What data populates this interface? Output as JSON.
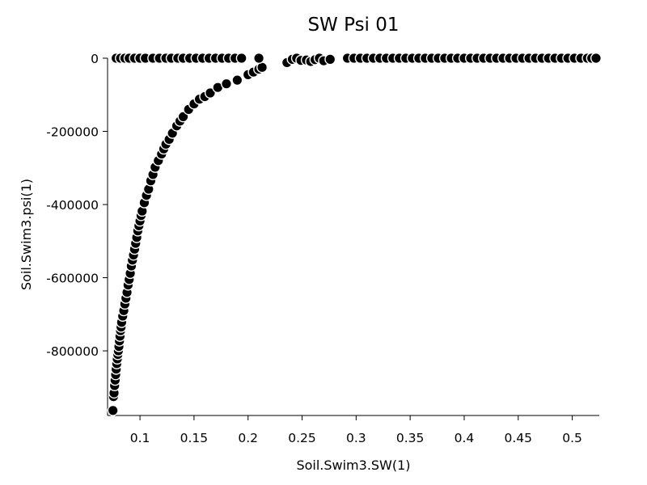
{
  "chart_data": {
    "type": "scatter",
    "title": "SW Psi 01",
    "xlabel": "Soil.Swim3.SW(1)",
    "ylabel": "Soil.Swim3.psi(1)",
    "xlim": [
      0.07,
      0.525
    ],
    "ylim": [
      -970000,
      0
    ],
    "x_ticks": [
      {
        "value": 0.1,
        "label": "0.1"
      },
      {
        "value": 0.15,
        "label": "0.15"
      },
      {
        "value": 0.2,
        "label": "0.2"
      },
      {
        "value": 0.25,
        "label": "0.25"
      },
      {
        "value": 0.3,
        "label": "0.3"
      },
      {
        "value": 0.35,
        "label": "0.35"
      },
      {
        "value": 0.4,
        "label": "0.4"
      },
      {
        "value": 0.45,
        "label": "0.45"
      },
      {
        "value": 0.5,
        "label": "0.5"
      }
    ],
    "y_ticks": [
      {
        "value": 0,
        "label": "0"
      },
      {
        "value": -200000,
        "label": "-200000"
      },
      {
        "value": -400000,
        "label": "-400000"
      },
      {
        "value": -600000,
        "label": "-600000"
      },
      {
        "value": -800000,
        "label": "-800000"
      }
    ],
    "grid": false,
    "marker_color": "#000000",
    "marker_edge_color": "#ffffff",
    "series": [
      {
        "name": "curve",
        "points": [
          [
            0.075,
            -963000
          ],
          [
            0.0755,
            -925000
          ],
          [
            0.076,
            -915000
          ],
          [
            0.0765,
            -895000
          ],
          [
            0.077,
            -880000
          ],
          [
            0.0775,
            -865000
          ],
          [
            0.078,
            -850000
          ],
          [
            0.0785,
            -835000
          ],
          [
            0.079,
            -822000
          ],
          [
            0.0795,
            -810000
          ],
          [
            0.08,
            -800000
          ],
          [
            0.0805,
            -788000
          ],
          [
            0.081,
            -773000
          ],
          [
            0.0815,
            -760000
          ],
          [
            0.082,
            -745000
          ],
          [
            0.0825,
            -735000
          ],
          [
            0.083,
            -722000
          ],
          [
            0.084,
            -705000
          ],
          [
            0.085,
            -690000
          ],
          [
            0.086,
            -672000
          ],
          [
            0.087,
            -656000
          ],
          [
            0.088,
            -640000
          ],
          [
            0.089,
            -620000
          ],
          [
            0.09,
            -605000
          ],
          [
            0.091,
            -588000
          ],
          [
            0.092,
            -568000
          ],
          [
            0.093,
            -552000
          ],
          [
            0.094,
            -538000
          ],
          [
            0.095,
            -522000
          ],
          [
            0.096,
            -506000
          ],
          [
            0.097,
            -490000
          ],
          [
            0.098,
            -472000
          ],
          [
            0.099,
            -458000
          ],
          [
            0.1,
            -445000
          ],
          [
            0.101,
            -430000
          ],
          [
            0.102,
            -418000
          ],
          [
            0.104,
            -395000
          ],
          [
            0.106,
            -375000
          ],
          [
            0.108,
            -358000
          ],
          [
            0.11,
            -335000
          ],
          [
            0.112,
            -318000
          ],
          [
            0.114,
            -298000
          ],
          [
            0.117,
            -280000
          ],
          [
            0.12,
            -262000
          ],
          [
            0.122,
            -248000
          ],
          [
            0.124,
            -235000
          ],
          [
            0.127,
            -222000
          ],
          [
            0.13,
            -205000
          ],
          [
            0.134,
            -185000
          ],
          [
            0.137,
            -172000
          ],
          [
            0.14,
            -160000
          ],
          [
            0.145,
            -140000
          ],
          [
            0.15,
            -125000
          ],
          [
            0.155,
            -112000
          ],
          [
            0.16,
            -105000
          ],
          [
            0.165,
            -95000
          ],
          [
            0.172,
            -80000
          ],
          [
            0.18,
            -70000
          ],
          [
            0.19,
            -60000
          ],
          [
            0.2,
            -45000
          ],
          [
            0.205,
            -38000
          ],
          [
            0.21,
            -30000
          ],
          [
            0.213,
            -25000
          ]
        ]
      },
      {
        "name": "near-zero",
        "points": [
          [
            0.078,
            0
          ],
          [
            0.082,
            0
          ],
          [
            0.086,
            0
          ],
          [
            0.09,
            0
          ],
          [
            0.095,
            0
          ],
          [
            0.1,
            0
          ],
          [
            0.105,
            0
          ],
          [
            0.112,
            0
          ],
          [
            0.118,
            0
          ],
          [
            0.124,
            0
          ],
          [
            0.129,
            0
          ],
          [
            0.135,
            0
          ],
          [
            0.14,
            0
          ],
          [
            0.146,
            0
          ],
          [
            0.152,
            0
          ],
          [
            0.158,
            0
          ],
          [
            0.164,
            0
          ],
          [
            0.17,
            0
          ],
          [
            0.176,
            0
          ],
          [
            0.182,
            0
          ],
          [
            0.188,
            0
          ],
          [
            0.194,
            0
          ],
          [
            0.21,
            0
          ],
          [
            0.236,
            -12000
          ],
          [
            0.241,
            -3000
          ],
          [
            0.245,
            0
          ],
          [
            0.249,
            -6000
          ],
          [
            0.254,
            -5000
          ],
          [
            0.258,
            -9000
          ],
          [
            0.262,
            -4000
          ],
          [
            0.266,
            0
          ],
          [
            0.27,
            -7000
          ],
          [
            0.276,
            -3000
          ],
          [
            0.292,
            0
          ],
          [
            0.298,
            0
          ],
          [
            0.304,
            0
          ],
          [
            0.31,
            0
          ],
          [
            0.316,
            0
          ],
          [
            0.322,
            0
          ],
          [
            0.328,
            0
          ],
          [
            0.334,
            0
          ],
          [
            0.34,
            0
          ],
          [
            0.346,
            0
          ],
          [
            0.352,
            0
          ],
          [
            0.358,
            0
          ],
          [
            0.364,
            0
          ],
          [
            0.37,
            0
          ],
          [
            0.376,
            0
          ],
          [
            0.382,
            0
          ],
          [
            0.388,
            0
          ],
          [
            0.394,
            0
          ],
          [
            0.4,
            0
          ],
          [
            0.406,
            0
          ],
          [
            0.412,
            0
          ],
          [
            0.418,
            0
          ],
          [
            0.424,
            0
          ],
          [
            0.43,
            0
          ],
          [
            0.436,
            0
          ],
          [
            0.442,
            0
          ],
          [
            0.448,
            0
          ],
          [
            0.454,
            0
          ],
          [
            0.46,
            0
          ],
          [
            0.466,
            0
          ],
          [
            0.472,
            0
          ],
          [
            0.478,
            0
          ],
          [
            0.484,
            0
          ],
          [
            0.49,
            0
          ],
          [
            0.496,
            0
          ],
          [
            0.502,
            0
          ],
          [
            0.508,
            0
          ],
          [
            0.514,
            0
          ],
          [
            0.518,
            0
          ],
          [
            0.522,
            0
          ]
        ]
      }
    ]
  }
}
